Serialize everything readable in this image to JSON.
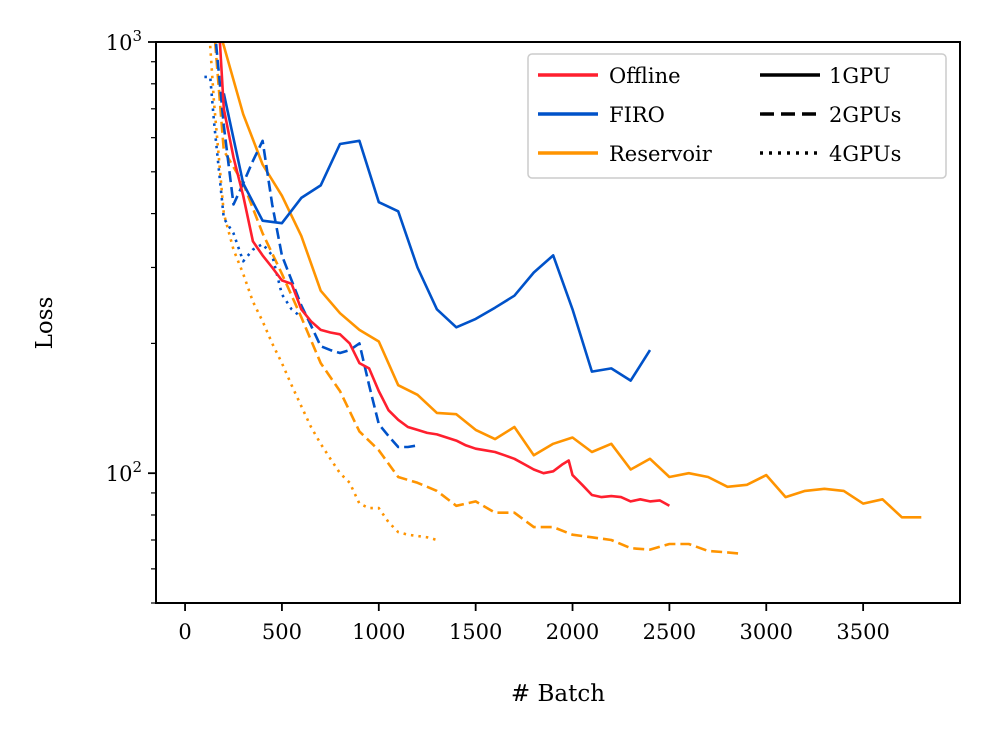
{
  "chart_data": {
    "type": "line",
    "title": "",
    "xlabel": "# Batch",
    "ylabel": "Loss",
    "yscale": "log",
    "xlim": [
      -150,
      4000
    ],
    "ylim": [
      50,
      1000
    ],
    "x_ticks": [
      {
        "value": 0,
        "label": "0"
      },
      {
        "value": 500,
        "label": "500"
      },
      {
        "value": 1000,
        "label": "1000"
      },
      {
        "value": 1500,
        "label": "1500"
      },
      {
        "value": 2000,
        "label": "2000"
      },
      {
        "value": 2500,
        "label": "2500"
      },
      {
        "value": 3000,
        "label": "3000"
      },
      {
        "value": 3500,
        "label": "3500"
      }
    ],
    "y_major_ticks": [
      {
        "value": 100,
        "base": "10",
        "exp": "2"
      },
      {
        "value": 1000,
        "base": "10",
        "exp": "3"
      }
    ],
    "y_minor_ticks": [
      50,
      60,
      70,
      80,
      90,
      200,
      300,
      400,
      500,
      600,
      700,
      800,
      900
    ],
    "legend": {
      "position": "upper right",
      "methods": [
        {
          "label": "Offline",
          "color": "#ff1f2e"
        },
        {
          "label": "FIRO",
          "color": "#0052c9"
        },
        {
          "label": "Reservoir",
          "color": "#ff9400"
        }
      ],
      "styles": [
        {
          "label": "1GPU",
          "dash": "solid"
        },
        {
          "label": "2GPUs",
          "dash": "dashed"
        },
        {
          "label": "4GPUs",
          "dash": "dotted"
        }
      ]
    },
    "series": [
      {
        "name": "Reservoir 1GPU",
        "color": "#ff9400",
        "dash": "solid",
        "x": [
          180,
          200,
          300,
          400,
          500,
          600,
          700,
          800,
          900,
          1000,
          1100,
          1200,
          1300,
          1400,
          1500,
          1600,
          1700,
          1800,
          1900,
          2000,
          2100,
          2200,
          2300,
          2400,
          2500,
          2600,
          2700,
          2800,
          2900,
          3000,
          3100,
          3200,
          3300,
          3400,
          3500,
          3600,
          3700,
          3800
        ],
        "y": [
          1050,
          980,
          680,
          520,
          440,
          355,
          265,
          235,
          215,
          202,
          160,
          152,
          138,
          137,
          126,
          120,
          128,
          110,
          117,
          121,
          112,
          117,
          102,
          108,
          98,
          100,
          98,
          93,
          94,
          99,
          88,
          91,
          92,
          91,
          85,
          87,
          79,
          79
        ]
      },
      {
        "name": "Reservoir 2GPUs",
        "color": "#ff9400",
        "dash": "dashed",
        "x": [
          155,
          200,
          300,
          400,
          500,
          600,
          700,
          800,
          900,
          1000,
          1100,
          1200,
          1300,
          1400,
          1500,
          1600,
          1700,
          1800,
          1900,
          2000,
          2100,
          2200,
          2300,
          2400,
          2500,
          2600,
          2700,
          2800,
          2880
        ],
        "y": [
          1000,
          560,
          470,
          360,
          290,
          230,
          180,
          155,
          125,
          113,
          98,
          95,
          91,
          84,
          86,
          81,
          81,
          75,
          75,
          72,
          71,
          70,
          67,
          66.5,
          68.5,
          68.5,
          66,
          65.5,
          65
        ]
      },
      {
        "name": "Reservoir 4GPUs",
        "color": "#ff9400",
        "dash": "dotted",
        "x": [
          130,
          150,
          200,
          250,
          300,
          350,
          400,
          450,
          500,
          550,
          600,
          650,
          700,
          750,
          800,
          850,
          900,
          950,
          1000,
          1050,
          1100,
          1150,
          1200,
          1250,
          1300
        ],
        "y": [
          980,
          720,
          400,
          330,
          290,
          250,
          225,
          200,
          180,
          160,
          143,
          128,
          117,
          108,
          100,
          95,
          85,
          83,
          83,
          77,
          73,
          72,
          71.5,
          71,
          70
        ]
      },
      {
        "name": "FIRO 1GPU",
        "color": "#0052c9",
        "dash": "solid",
        "x": [
          200,
          300,
          400,
          500,
          600,
          700,
          800,
          900,
          1000,
          1100,
          1200,
          1300,
          1400,
          1500,
          1600,
          1700,
          1800,
          1900,
          2000,
          2100,
          2200,
          2300,
          2400
        ],
        "y": [
          760,
          470,
          385,
          380,
          435,
          465,
          580,
          590,
          425,
          405,
          300,
          240,
          218,
          228,
          242,
          258,
          292,
          320,
          240,
          172,
          175,
          164,
          193
        ]
      },
      {
        "name": "FIRO 2GPUs",
        "color": "#0052c9",
        "dash": "dashed",
        "x": [
          160,
          200,
          250,
          300,
          350,
          400,
          450,
          500,
          550,
          600,
          650,
          700,
          750,
          800,
          850,
          900,
          950,
          1000,
          1050,
          1100,
          1150,
          1200
        ],
        "y": [
          990,
          640,
          420,
          470,
          530,
          590,
          420,
          320,
          280,
          245,
          220,
          197,
          193,
          190,
          193,
          200,
          160,
          130,
          122,
          115,
          115,
          116
        ]
      },
      {
        "name": "FIRO 4GPUs",
        "color": "#0052c9",
        "dash": "dotted",
        "x": [
          100,
          130,
          150,
          200,
          250,
          300,
          350,
          400,
          450,
          500,
          550,
          600
        ],
        "y": [
          830,
          830,
          650,
          390,
          360,
          310,
          330,
          340,
          320,
          260,
          240,
          230
        ]
      },
      {
        "name": "Offline 1GPU",
        "color": "#ff1f2e",
        "dash": "solid",
        "x": [
          180,
          200,
          250,
          300,
          350,
          400,
          450,
          500,
          550,
          600,
          650,
          700,
          750,
          800,
          850,
          900,
          950,
          1000,
          1050,
          1100,
          1150,
          1200,
          1250,
          1300,
          1350,
          1400,
          1450,
          1500,
          1550,
          1600,
          1650,
          1700,
          1750,
          1800,
          1850,
          1900,
          1950,
          1980,
          2000,
          2050,
          2100,
          2150,
          2200,
          2250,
          2300,
          2350,
          2400,
          2450,
          2500
        ],
        "y": [
          1000,
          700,
          540,
          440,
          345,
          320,
          300,
          280,
          275,
          240,
          225,
          215,
          212,
          210,
          200,
          180,
          175,
          155,
          140,
          133,
          128,
          126,
          124,
          123,
          121,
          119,
          116,
          114,
          113,
          112,
          110,
          108,
          105,
          102,
          100,
          101,
          105,
          107,
          99,
          94,
          89,
          88,
          88.5,
          88,
          86,
          87,
          86,
          86.5,
          84
        ]
      }
    ]
  }
}
